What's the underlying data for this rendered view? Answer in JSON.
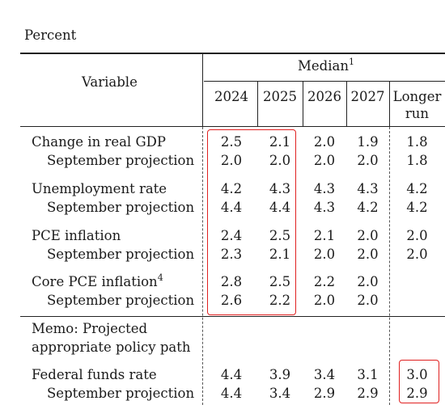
{
  "unit_label": "Percent",
  "header": {
    "variable": "Variable",
    "median": "Median",
    "median_note": "1",
    "years": [
      "2024",
      "2025",
      "2026",
      "2027"
    ],
    "longer_run_line1": "Longer",
    "longer_run_line2": "run"
  },
  "rows": [
    {
      "label": "Change in real GDP",
      "values": [
        "2.5",
        "2.1",
        "2.0",
        "1.9",
        "1.8"
      ]
    },
    {
      "label": "September projection",
      "values": [
        "2.0",
        "2.0",
        "2.0",
        "2.0",
        "1.8"
      ]
    },
    {
      "label": "Unemployment rate",
      "values": [
        "4.2",
        "4.3",
        "4.3",
        "4.3",
        "4.2"
      ]
    },
    {
      "label": "September projection",
      "values": [
        "4.4",
        "4.4",
        "4.3",
        "4.2",
        "4.2"
      ]
    },
    {
      "label": "PCE inflation",
      "values": [
        "2.4",
        "2.5",
        "2.1",
        "2.0",
        "2.0"
      ]
    },
    {
      "label": "September projection",
      "values": [
        "2.3",
        "2.1",
        "2.0",
        "2.0",
        "2.0"
      ]
    },
    {
      "label": "Core PCE inflation",
      "note": "4",
      "values": [
        "2.8",
        "2.5",
        "2.2",
        "2.0",
        ""
      ]
    },
    {
      "label": "September projection",
      "values": [
        "2.6",
        "2.2",
        "2.0",
        "2.0",
        ""
      ]
    }
  ],
  "memo": {
    "line1": "Memo: Projected",
    "line2": "appropriate policy path"
  },
  "policy_rows": [
    {
      "label": "Federal funds rate",
      "values": [
        "4.4",
        "3.9",
        "3.4",
        "3.1",
        "3.0"
      ]
    },
    {
      "label": "September projection",
      "values": [
        "4.4",
        "3.4",
        "2.9",
        "2.9",
        "2.9"
      ]
    }
  ],
  "highlight_color": "#e02020"
}
